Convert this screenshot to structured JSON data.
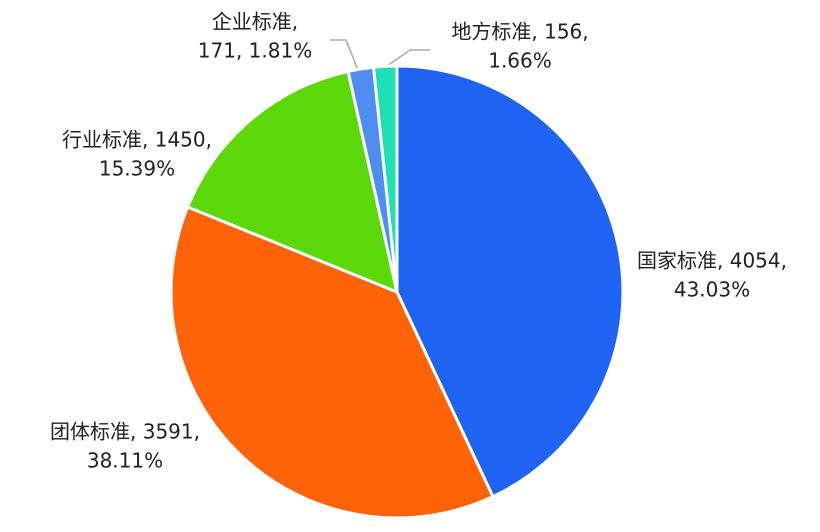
{
  "chart_data": {
    "type": "pie",
    "values": [
      4054,
      3591,
      1450,
      171,
      156
    ],
    "value_labels": [
      [
        "国家标准, 4054,",
        "43.03%"
      ],
      [
        "团体标准, 3591,",
        "38.11%"
      ],
      [
        "行业标准, 1450,",
        "15.39%"
      ],
      [
        "企业标准,",
        "171, 1.81%"
      ],
      [
        "地方标准, 156,",
        "1.66%"
      ]
    ],
    "colors": [
      "#1f63f2",
      "#ff6309",
      "#5cd80a",
      "#4f8df0",
      "#1ee0b2"
    ]
  }
}
